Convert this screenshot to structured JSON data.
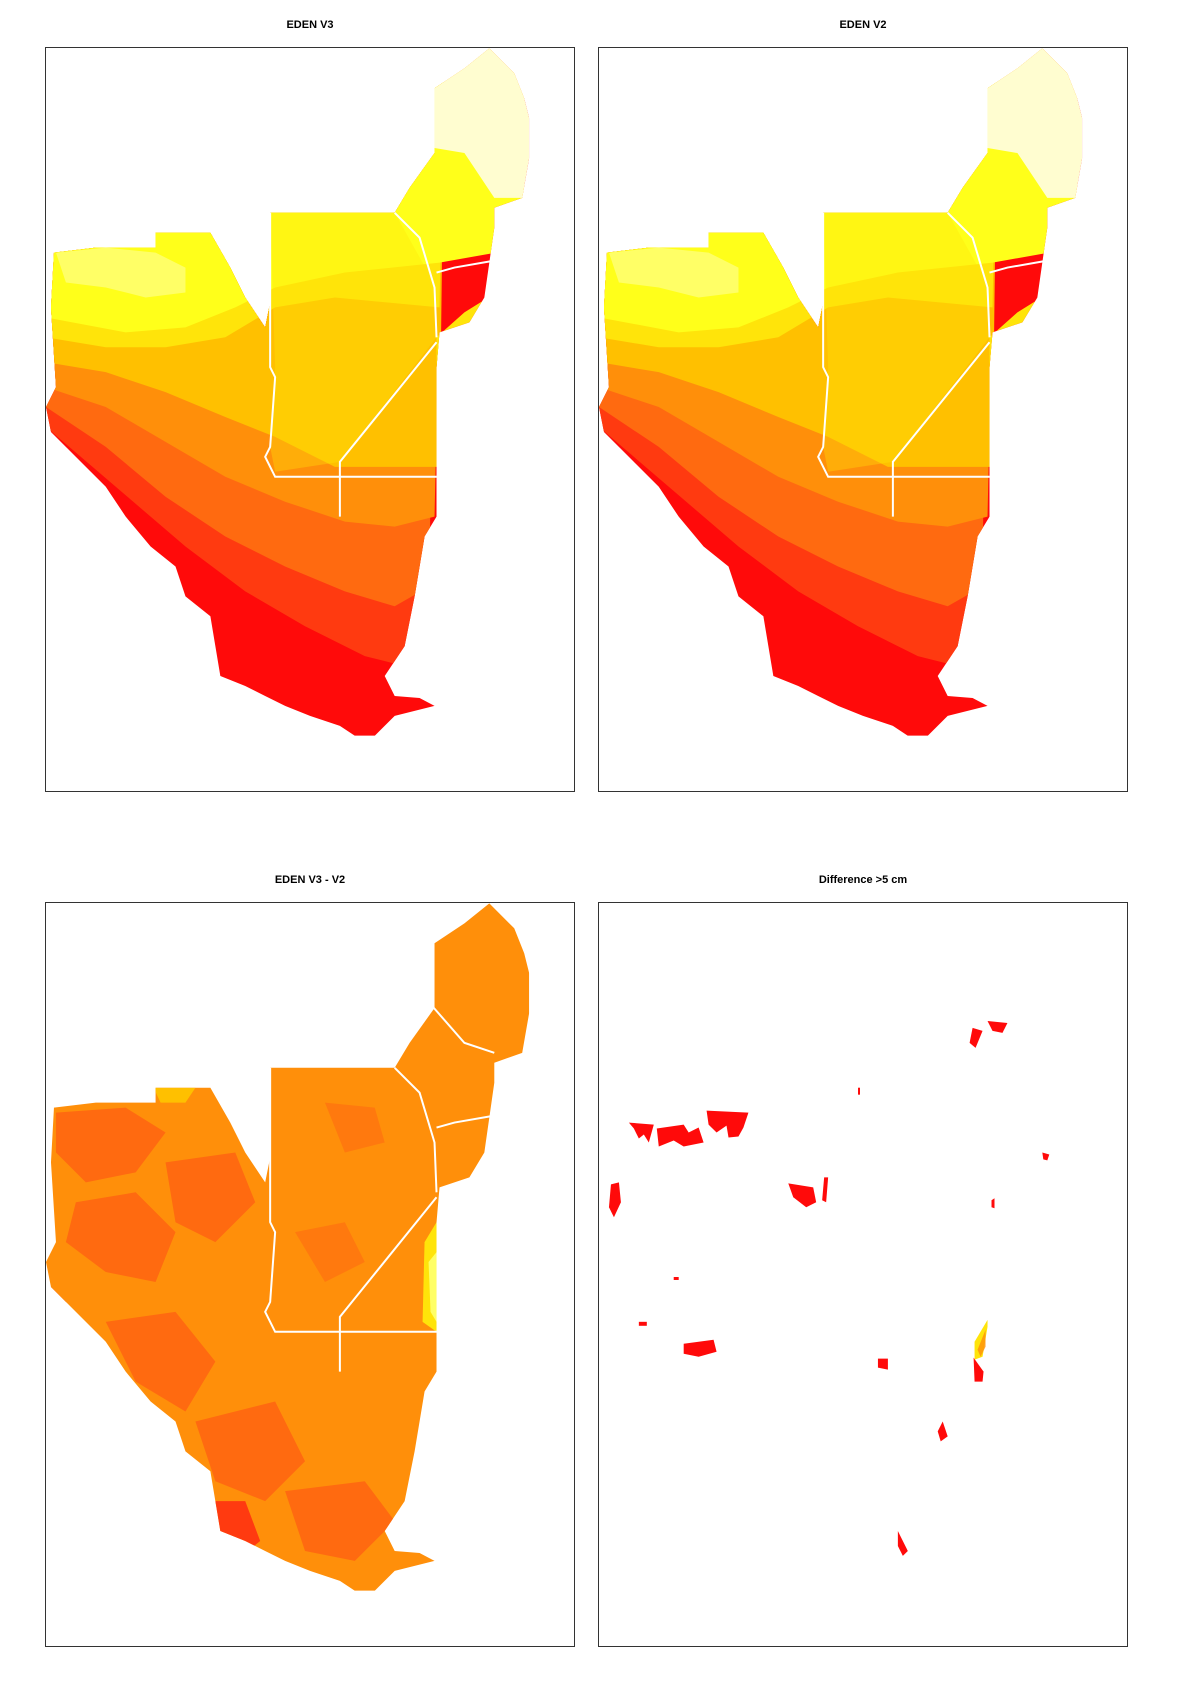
{
  "panels": [
    {
      "title": "EDEN V3"
    },
    {
      "title": "EDEN V2"
    },
    {
      "title": "EDEN V3 - V2"
    },
    {
      "title": "Difference >5 cm"
    }
  ],
  "colors": {
    "pale_yellow": "#fffdd0",
    "light_yellow": "#ffff66",
    "yellow": "#ffff1a",
    "yellow_orange": "#ffe40a",
    "gold": "#ffc000",
    "orange": "#ff8f0a",
    "dark_orange": "#ff6a10",
    "red_orange": "#ff3a10",
    "red": "#ff0a0a",
    "boundary": "#ffffff"
  }
}
